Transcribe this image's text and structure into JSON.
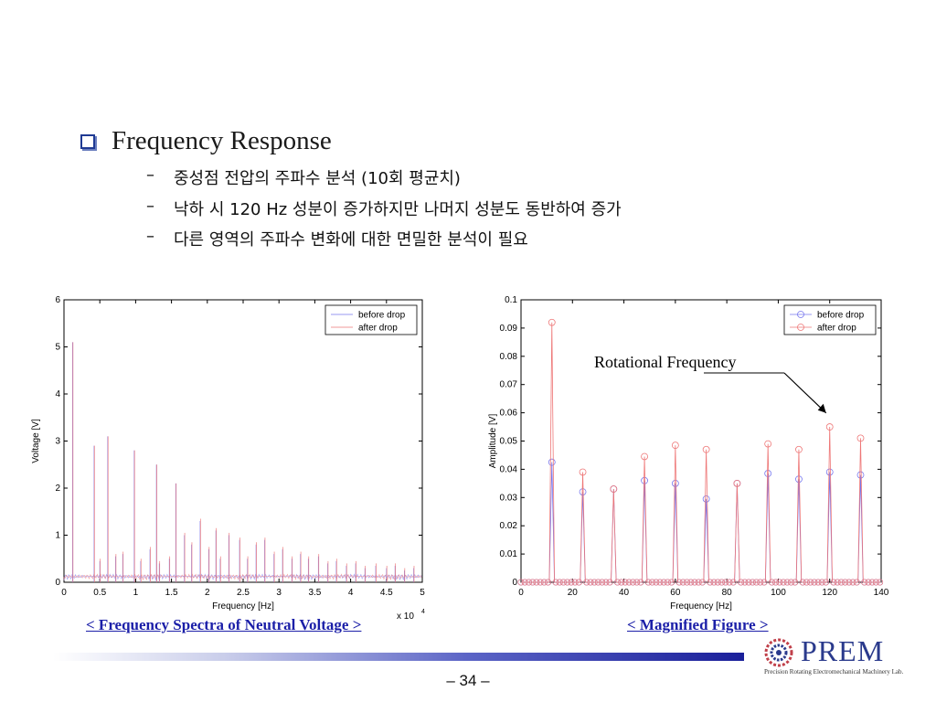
{
  "slide": {
    "title": "Frequency Response",
    "bullets": [
      "중성점 전압의 주파수 분석 (10회 평균치)",
      "낙하 시 120 Hz 성분이 증가하지만 나머지 성분도 동반하여 증가",
      "다른 영역의 주파수 변화에 대한 면밀한 분석이 필요"
    ],
    "bullet_dash": "–",
    "caption_left": "< Frequency Spectra of Neutral Voltage >",
    "caption_right": "< Magnified Figure >",
    "page_number": "– 34 –",
    "logo_text": "PREM",
    "logo_subtitle": "Precision Rotating Electromechanical Machinery Lab."
  },
  "colors": {
    "before_drop": "#7777ee",
    "after_drop": "#ee7777",
    "title_bullet": "#1f3a93",
    "caption": "#1b1fa8"
  },
  "chart_data": [
    {
      "type": "line",
      "xlabel": "Frequency [Hz]",
      "ylabel": "Voltage [V]",
      "xlim": [
        0,
        50000
      ],
      "ylim": [
        0,
        6
      ],
      "x_ticks": [
        0,
        5000,
        10000,
        15000,
        20000,
        25000,
        30000,
        35000,
        40000,
        45000,
        50000
      ],
      "x_tick_labels": [
        "0",
        "0.5",
        "1",
        "1.5",
        "2",
        "2.5",
        "3",
        "3.5",
        "4",
        "4.5",
        "5"
      ],
      "y_ticks": [
        0,
        1,
        2,
        3,
        4,
        5,
        6
      ],
      "y_tick_labels": [
        "0",
        "1",
        "2",
        "3",
        "4",
        "5",
        "6"
      ],
      "x_multiplier_label": "x 10",
      "x_multiplier_exp": "4",
      "legend_position": "top-right",
      "series": [
        {
          "name": "before drop",
          "color_key": "before_drop",
          "x": [
            1200,
            4200,
            5000,
            6100,
            7200,
            8200,
            9800,
            10700,
            12000,
            12900,
            13300,
            14700,
            15600,
            16800,
            17800,
            19000,
            20200,
            21200,
            21800,
            23000,
            24500,
            25600,
            26800,
            28000,
            29300,
            30500,
            31800,
            33000,
            34100,
            35500,
            36800,
            38000,
            39400,
            40700,
            42000,
            43500,
            45000,
            46200,
            47500,
            48800
          ],
          "y": [
            5.1,
            2.9,
            0.45,
            3.1,
            0.55,
            0.6,
            2.8,
            0.45,
            0.7,
            2.5,
            0.4,
            0.5,
            2.1,
            1.0,
            0.8,
            1.3,
            0.7,
            1.1,
            0.5,
            1.0,
            0.9,
            0.5,
            0.8,
            0.9,
            0.6,
            0.7,
            0.5,
            0.6,
            0.5,
            0.55,
            0.4,
            0.45,
            0.35,
            0.4,
            0.3,
            0.35,
            0.3,
            0.35,
            0.25,
            0.3
          ]
        },
        {
          "name": "after drop",
          "color_key": "after_drop",
          "x": [
            1250,
            4250,
            5050,
            6150,
            7250,
            8250,
            9850,
            10750,
            12050,
            12950,
            13350,
            14750,
            15650,
            16850,
            17850,
            19050,
            20250,
            21250,
            21850,
            23050,
            24550,
            25650,
            26850,
            28050,
            29350,
            30550,
            31850,
            33050,
            34150,
            35550,
            36850,
            38050,
            39450,
            40750,
            42050,
            43550,
            45050,
            46250,
            47550,
            48850
          ],
          "y": [
            5.1,
            2.9,
            0.5,
            3.1,
            0.6,
            0.65,
            2.8,
            0.5,
            0.75,
            2.5,
            0.45,
            0.55,
            2.1,
            1.05,
            0.85,
            1.35,
            0.75,
            1.15,
            0.55,
            1.05,
            0.95,
            0.55,
            0.85,
            0.95,
            0.65,
            0.75,
            0.55,
            0.65,
            0.55,
            0.6,
            0.45,
            0.5,
            0.4,
            0.45,
            0.35,
            0.4,
            0.35,
            0.4,
            0.3,
            0.35
          ]
        }
      ]
    },
    {
      "type": "line",
      "xlabel": "Frequency [Hz]",
      "ylabel": "Amplitude [V]",
      "xlim": [
        0,
        140
      ],
      "ylim": [
        0,
        0.1
      ],
      "x_ticks": [
        0,
        20,
        40,
        60,
        80,
        100,
        120,
        140
      ],
      "x_tick_labels": [
        "0",
        "20",
        "40",
        "60",
        "80",
        "100",
        "120",
        "140"
      ],
      "y_ticks": [
        0,
        0.01,
        0.02,
        0.03,
        0.04,
        0.05,
        0.06,
        0.07,
        0.08,
        0.09,
        0.1
      ],
      "y_tick_labels": [
        "0",
        "0.01",
        "0.02",
        "0.03",
        "0.04",
        "0.05",
        "0.06",
        "0.07",
        "0.08",
        "0.09",
        "0.1"
      ],
      "legend_position": "top-right",
      "annotation": {
        "text": "Rotational Frequency",
        "target_x": 120,
        "target_y": 0.058
      },
      "series": [
        {
          "name": "before drop",
          "color_key": "before_drop",
          "peaks_x": [
            12,
            24,
            36,
            48,
            60,
            72,
            84,
            96,
            108,
            120,
            132
          ],
          "peaks_y": [
            0.0425,
            0.032,
            0.033,
            0.036,
            0.035,
            0.0295,
            0.035,
            0.0385,
            0.0365,
            0.039,
            0.038
          ]
        },
        {
          "name": "after drop",
          "color_key": "after_drop",
          "peaks_x": [
            12,
            24,
            36,
            48,
            60,
            72,
            84,
            96,
            108,
            120,
            132
          ],
          "peaks_y": [
            0.092,
            0.039,
            0.033,
            0.0445,
            0.0485,
            0.047,
            0.035,
            0.049,
            0.047,
            0.055,
            0.051
          ]
        }
      ]
    }
  ]
}
